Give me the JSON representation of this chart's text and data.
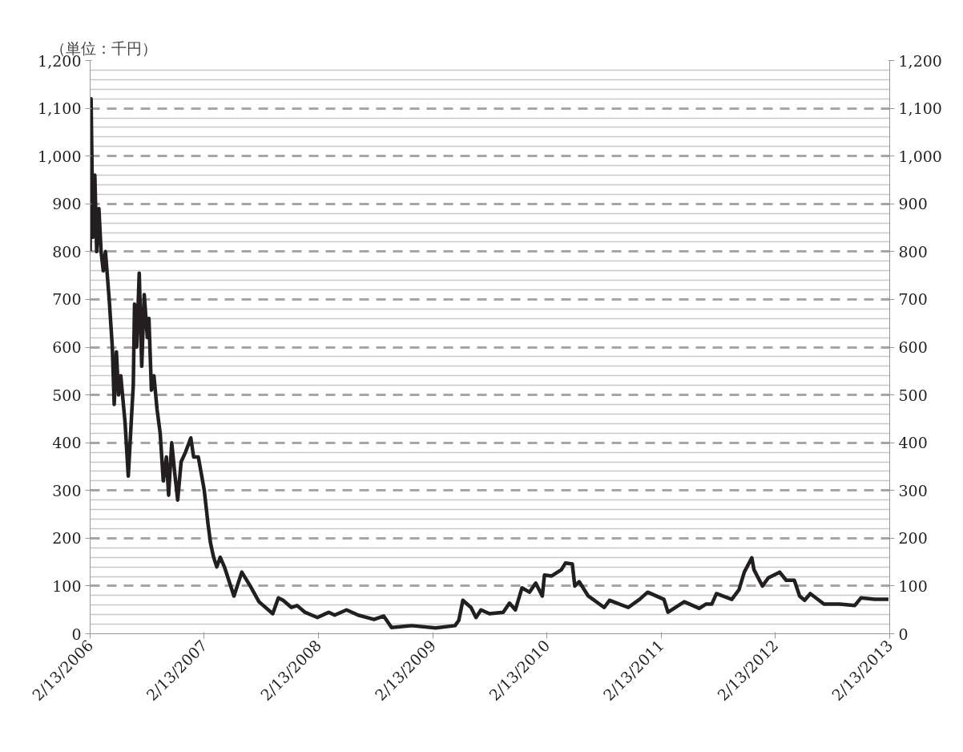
{
  "chart_data": {
    "type": "line",
    "ylabel": "（単位：千円）",
    "x": [
      "2006-02-13",
      "2006-02-16",
      "2006-02-22",
      "2006-02-28",
      "2006-03-06",
      "2006-03-13",
      "2006-03-20",
      "2006-03-27",
      "2006-04-03",
      "2006-04-15",
      "2006-04-25",
      "2006-05-01",
      "2006-05-08",
      "2006-05-15",
      "2006-05-22",
      "2006-06-05",
      "2006-06-15",
      "2006-06-25",
      "2006-07-01",
      "2006-07-05",
      "2006-07-12",
      "2006-07-20",
      "2006-07-28",
      "2006-08-05",
      "2006-08-15",
      "2006-08-20",
      "2006-08-28",
      "2006-09-05",
      "2006-09-15",
      "2006-09-25",
      "2006-10-05",
      "2006-10-15",
      "2006-10-22",
      "2006-11-01",
      "2006-11-10",
      "2006-11-20",
      "2006-12-01",
      "2006-12-15",
      "2007-01-01",
      "2007-01-10",
      "2007-01-25",
      "2007-02-05",
      "2007-02-13",
      "2007-02-25",
      "2007-03-05",
      "2007-03-15",
      "2007-03-25",
      "2007-04-05",
      "2007-04-19",
      "2007-05-19",
      "2007-06-13",
      "2007-07-10",
      "2007-08-07",
      "2007-09-20",
      "2007-10-08",
      "2007-10-23",
      "2007-11-19",
      "2007-12-07",
      "2008-01-01",
      "2008-02-10",
      "2008-03-17",
      "2008-04-05",
      "2008-05-13",
      "2008-06-19",
      "2008-08-09",
      "2008-09-09",
      "2008-10-04",
      "2008-12-07",
      "2009-02-22",
      "2009-04-25",
      "2009-05-07",
      "2009-05-20",
      "2009-06-15",
      "2009-07-01",
      "2009-07-17",
      "2009-08-13",
      "2009-09-26",
      "2009-10-16",
      "2009-11-04",
      "2009-11-25",
      "2009-12-19",
      "2010-01-08",
      "2010-01-29",
      "2010-02-05",
      "2010-02-28",
      "2010-03-31",
      "2010-04-13",
      "2010-05-05",
      "2010-05-13",
      "2010-05-27",
      "2010-06-25",
      "2010-08-15",
      "2010-09-01",
      "2010-10-31",
      "2010-12-06",
      "2011-01-01",
      "2011-02-22",
      "2011-03-07",
      "2011-04-28",
      "2011-06-15",
      "2011-07-06",
      "2011-07-25",
      "2011-08-09",
      "2011-09-27",
      "2011-10-20",
      "2011-11-06",
      "2011-11-30",
      "2011-12-07",
      "2012-01-03",
      "2012-01-22",
      "2012-02-27",
      "2012-03-19",
      "2012-04-14",
      "2012-05-01",
      "2012-05-17",
      "2012-06-04",
      "2012-07-18",
      "2012-09-06",
      "2012-10-24",
      "2012-11-13",
      "2012-12-27",
      "2013-02-09"
    ],
    "series": [
      {
        "color": "#231f20",
        "values": [
          800,
          1120,
          830,
          960,
          800,
          890,
          800,
          760,
          800,
          700,
          600,
          480,
          590,
          500,
          540,
          440,
          330,
          450,
          520,
          690,
          600,
          755,
          560,
          710,
          620,
          660,
          510,
          540,
          470,
          420,
          320,
          370,
          290,
          400,
          340,
          280,
          360,
          380,
          410,
          370,
          370,
          330,
          300,
          230,
          190,
          160,
          140,
          160,
          139,
          79,
          129,
          100,
          67,
          42,
          75,
          70,
          55,
          59,
          45,
          34,
          45,
          39,
          50,
          39,
          30,
          37,
          13,
          17,
          12,
          17,
          28,
          70,
          55,
          34,
          50,
          42,
          45,
          64,
          50,
          96,
          87,
          106,
          79,
          123,
          121,
          134,
          148,
          146,
          100,
          109,
          79,
          55,
          70,
          55,
          72,
          87,
          72,
          45,
          67,
          53,
          62,
          62,
          84,
          72,
          92,
          129,
          159,
          134,
          100,
          117,
          129,
          112,
          112,
          79,
          70,
          84,
          62,
          62,
          59,
          75,
          72,
          72
        ]
      }
    ],
    "xlim": [
      "2006-02-13",
      "2013-02-13"
    ],
    "xticks": [
      {
        "value": "2006-02-13",
        "label": "2/13/2006"
      },
      {
        "value": "2007-02-13",
        "label": "2/13/2007"
      },
      {
        "value": "2008-02-13",
        "label": "2/13/2008"
      },
      {
        "value": "2009-02-13",
        "label": "2/13/2009"
      },
      {
        "value": "2010-02-13",
        "label": "2/13/2010"
      },
      {
        "value": "2011-02-13",
        "label": "2/13/2011"
      },
      {
        "value": "2012-02-13",
        "label": "2/13/2012"
      },
      {
        "value": "2013-02-13",
        "label": "2/13/2013"
      }
    ],
    "ylim": [
      0,
      1200
    ],
    "yticks": [
      0,
      100,
      200,
      300,
      400,
      500,
      600,
      700,
      800,
      900,
      {
        "value": 1000,
        "label": "1,000"
      },
      {
        "value": 1100,
        "label": "1,100"
      },
      {
        "value": 1200,
        "label": "1,200"
      }
    ],
    "y2lim": [
      0,
      1200
    ],
    "y2ticks": [
      0,
      100,
      200,
      300,
      400,
      500,
      600,
      700,
      800,
      900,
      {
        "value": 1000,
        "label": "1,000"
      },
      {
        "value": 1100,
        "label": "1,100"
      },
      {
        "value": 1200,
        "label": "1,200"
      }
    ],
    "grid": "y",
    "marker": "none",
    "line_style": "solid"
  }
}
